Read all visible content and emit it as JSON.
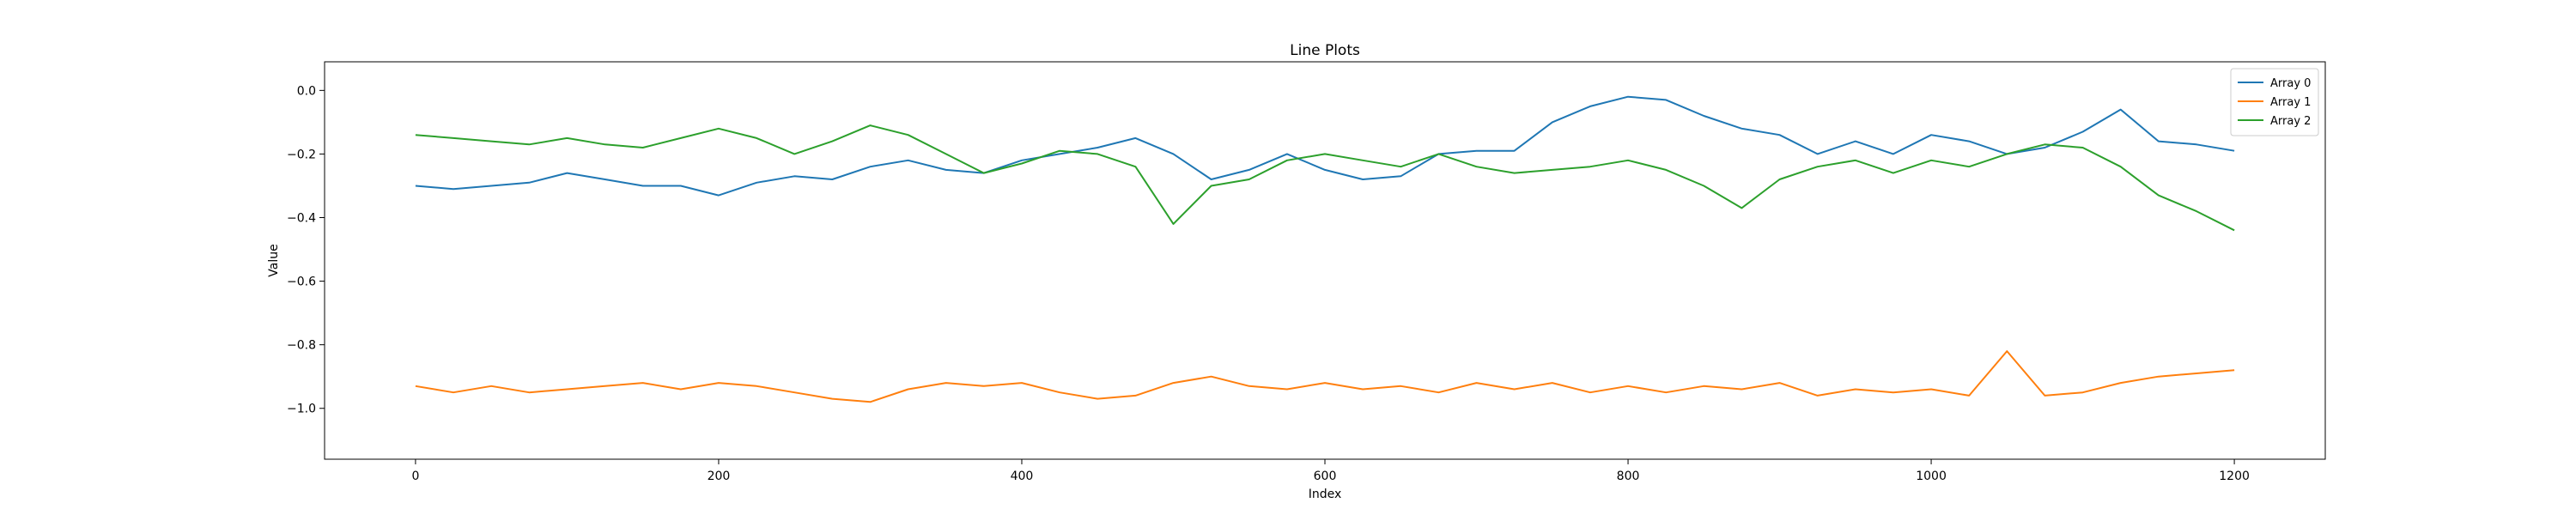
{
  "chart_data": {
    "type": "line",
    "title": "Line Plots",
    "xlabel": "Index",
    "ylabel": "Value",
    "xlim": [
      -60,
      1260
    ],
    "ylim": [
      -1.16,
      0.09
    ],
    "xticks": [
      0,
      200,
      400,
      600,
      800,
      1000,
      1200
    ],
    "yticks": [
      -1.0,
      -0.8,
      -0.6,
      -0.4,
      -0.2,
      0.0
    ],
    "grid": false,
    "legend": "top-right",
    "series": [
      {
        "name": "Array 0",
        "color": "#1f77b4",
        "x": [
          0,
          25,
          50,
          75,
          100,
          125,
          150,
          175,
          200,
          225,
          250,
          275,
          300,
          325,
          350,
          375,
          400,
          425,
          450,
          475,
          500,
          525,
          550,
          575,
          600,
          625,
          650,
          675,
          700,
          725,
          750,
          775,
          800,
          825,
          850,
          875,
          900,
          925,
          950,
          975,
          1000,
          1025,
          1050,
          1075,
          1100,
          1125,
          1150,
          1175,
          1200
        ],
        "y": [
          -0.3,
          -0.31,
          -0.3,
          -0.29,
          -0.26,
          -0.28,
          -0.3,
          -0.3,
          -0.33,
          -0.29,
          -0.27,
          -0.28,
          -0.24,
          -0.22,
          -0.25,
          -0.26,
          -0.22,
          -0.2,
          -0.18,
          -0.15,
          -0.2,
          -0.28,
          -0.25,
          -0.2,
          -0.25,
          -0.28,
          -0.27,
          -0.2,
          -0.19,
          -0.19,
          -0.1,
          -0.05,
          -0.02,
          -0.03,
          -0.08,
          -0.12,
          -0.14,
          -0.2,
          -0.16,
          -0.2,
          -0.14,
          -0.16,
          -0.2,
          -0.18,
          -0.13,
          -0.06,
          -0.16,
          -0.17,
          -0.19
        ]
      },
      {
        "name": "Array 1",
        "color": "#ff7f0e",
        "x": [
          0,
          25,
          50,
          75,
          100,
          125,
          150,
          175,
          200,
          225,
          250,
          275,
          300,
          325,
          350,
          375,
          400,
          425,
          450,
          475,
          500,
          525,
          550,
          575,
          600,
          625,
          650,
          675,
          700,
          725,
          750,
          775,
          800,
          825,
          850,
          875,
          900,
          925,
          950,
          975,
          1000,
          1025,
          1050,
          1075,
          1100,
          1125,
          1150,
          1175,
          1200
        ],
        "y": [
          -0.93,
          -0.95,
          -0.93,
          -0.95,
          -0.94,
          -0.93,
          -0.92,
          -0.94,
          -0.92,
          -0.93,
          -0.95,
          -0.97,
          -0.98,
          -0.94,
          -0.92,
          -0.93,
          -0.92,
          -0.95,
          -0.97,
          -0.96,
          -0.92,
          -0.9,
          -0.93,
          -0.94,
          -0.92,
          -0.94,
          -0.93,
          -0.95,
          -0.92,
          -0.94,
          -0.92,
          -0.95,
          -0.93,
          -0.95,
          -0.93,
          -0.94,
          -0.92,
          -0.96,
          -0.94,
          -0.95,
          -0.94,
          -0.96,
          -0.82,
          -0.96,
          -0.95,
          -0.92,
          -0.9,
          -0.89,
          -0.88
        ]
      },
      {
        "name": "Array 2",
        "color": "#2ca02c",
        "x": [
          0,
          25,
          50,
          75,
          100,
          125,
          150,
          175,
          200,
          225,
          250,
          275,
          300,
          325,
          350,
          375,
          400,
          425,
          450,
          475,
          500,
          525,
          550,
          575,
          600,
          625,
          650,
          675,
          700,
          725,
          750,
          775,
          800,
          825,
          850,
          875,
          900,
          925,
          950,
          975,
          1000,
          1025,
          1050,
          1075,
          1100,
          1125,
          1150,
          1175,
          1200
        ],
        "y": [
          -0.14,
          -0.15,
          -0.16,
          -0.17,
          -0.15,
          -0.17,
          -0.18,
          -0.15,
          -0.12,
          -0.15,
          -0.2,
          -0.16,
          -0.11,
          -0.14,
          -0.2,
          -0.26,
          -0.23,
          -0.19,
          -0.2,
          -0.24,
          -0.42,
          -0.3,
          -0.28,
          -0.22,
          -0.2,
          -0.22,
          -0.24,
          -0.2,
          -0.24,
          -0.26,
          -0.25,
          -0.24,
          -0.22,
          -0.25,
          -0.3,
          -0.37,
          -0.28,
          -0.24,
          -0.22,
          -0.26,
          -0.22,
          -0.24,
          -0.2,
          -0.17,
          -0.18,
          -0.24,
          -0.33,
          -0.38,
          -0.44
        ]
      }
    ]
  }
}
